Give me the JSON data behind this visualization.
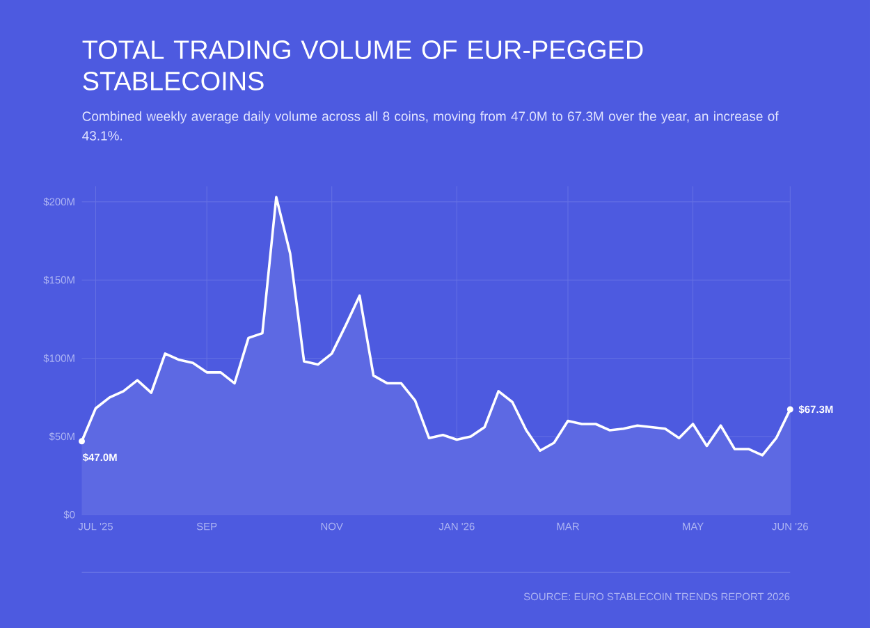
{
  "chart_data": {
    "type": "area",
    "title": "TOTAL TRADING VOLUME OF EUR-PEGGED STABLECOINS",
    "subtitle": "Combined weekly average daily volume across all 8 coins, moving from 47.0M to 67.3M over the year, an increase of 43.1%.",
    "annotations": [
      "SOURCE: EURO STABLECOIN TRENDS REPORT 2026"
    ],
    "x": [
      "2025-06-30",
      "2025-07-07",
      "2025-07-14",
      "2025-07-21",
      "2025-07-28",
      "2025-08-04",
      "2025-08-11",
      "2025-08-18",
      "2025-08-25",
      "2025-09-01",
      "2025-09-08",
      "2025-09-15",
      "2025-09-22",
      "2025-09-29",
      "2025-10-06",
      "2025-10-13",
      "2025-10-20",
      "2025-10-27",
      "2025-11-03",
      "2025-11-10",
      "2025-11-17",
      "2025-11-24",
      "2025-12-01",
      "2025-12-08",
      "2025-12-15",
      "2025-12-22",
      "2025-12-29",
      "2026-01-05",
      "2026-01-12",
      "2026-01-19",
      "2026-01-26",
      "2026-02-02",
      "2026-02-09",
      "2026-02-16",
      "2026-02-23",
      "2026-03-02",
      "2026-03-09",
      "2026-03-16",
      "2026-03-23",
      "2026-03-30",
      "2026-04-06",
      "2026-04-13",
      "2026-04-20",
      "2026-04-27",
      "2026-05-04",
      "2026-05-11",
      "2026-05-18",
      "2026-05-25",
      "2026-06-01",
      "2026-06-08",
      "2026-06-15",
      "2026-06-22"
    ],
    "series": [
      {
        "color": "#ffffff",
        "values": [
          47.0,
          68,
          75,
          79,
          86,
          78,
          103,
          99,
          97,
          91,
          91,
          84,
          113,
          116,
          203,
          167,
          98,
          96,
          103,
          121,
          140,
          89,
          84,
          84,
          73,
          49,
          51,
          48,
          50,
          56,
          79,
          72,
          54,
          41,
          46,
          60,
          58,
          58,
          54,
          55,
          57,
          56,
          55,
          49,
          58,
          44,
          57,
          42,
          42,
          38,
          49,
          67.3
        ],
        "value_labels": [
          "$47.0M",
          null,
          null,
          null,
          null,
          null,
          null,
          null,
          null,
          null,
          null,
          null,
          null,
          null,
          null,
          null,
          null,
          null,
          null,
          null,
          null,
          null,
          null,
          null,
          null,
          null,
          null,
          null,
          null,
          null,
          null,
          null,
          null,
          null,
          null,
          null,
          null,
          null,
          null,
          null,
          null,
          null,
          null,
          null,
          null,
          null,
          null,
          null,
          null,
          null,
          null,
          "$67.3M"
        ]
      }
    ],
    "xlim": [
      "2025-06-30",
      "2026-06-22"
    ],
    "ylim": [
      0,
      210
    ],
    "xticks": [
      {
        "value": "2025-07-07",
        "label": "JUL '25"
      },
      {
        "value": "2025-09-01",
        "label": "SEP"
      },
      {
        "value": "2025-11-03",
        "label": "NOV"
      },
      {
        "value": "2026-01-05",
        "label": "JAN '26"
      },
      {
        "value": "2026-03-02",
        "label": "MAR"
      },
      {
        "value": "2026-05-04",
        "label": "MAY"
      },
      {
        "value": "2026-06-22",
        "label": "JUN '26"
      }
    ],
    "yticks": [
      {
        "value": 0,
        "label": "$0"
      },
      {
        "value": 50,
        "label": "$50M"
      },
      {
        "value": 100,
        "label": "$100M"
      },
      {
        "value": 150,
        "label": "$150M"
      },
      {
        "value": 200,
        "label": "$200M"
      }
    ],
    "grid": true
  }
}
